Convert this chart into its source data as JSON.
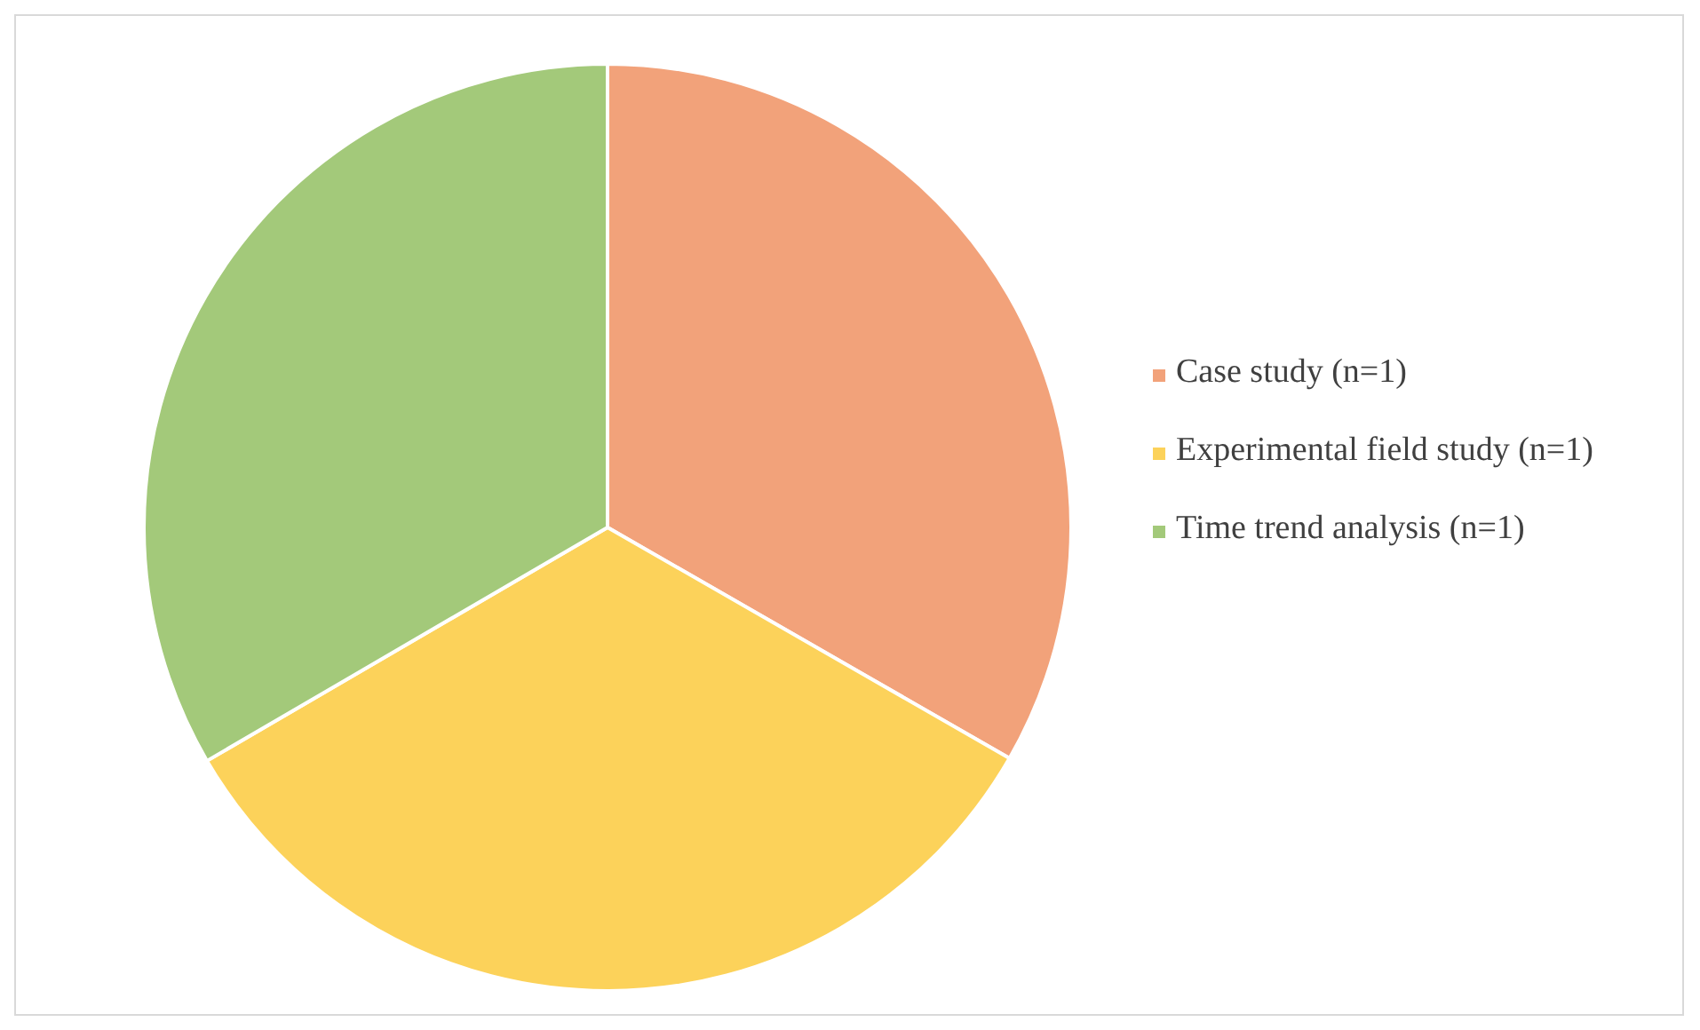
{
  "chart_data": {
    "type": "pie",
    "categories": [
      "Case study (n=1)",
      "Experimental field study (n=1)",
      "Time trend analysis (n=1)"
    ],
    "values": [
      33.3,
      33.3,
      33.4
    ],
    "colors": [
      "#f2a27a",
      "#fcd25a",
      "#a3c97a"
    ],
    "legend": "right"
  }
}
